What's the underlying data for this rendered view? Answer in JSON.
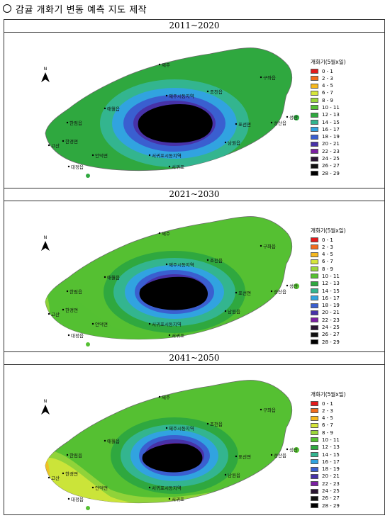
{
  "header": {
    "text": "감귤 개화기 변동 예측 지도 제작"
  },
  "legend": {
    "title": "개화기(5월x일)",
    "items": [
      {
        "label": "0 - 1",
        "color": "#e31a1c"
      },
      {
        "label": "2 - 3",
        "color": "#f26b1d"
      },
      {
        "label": "4 - 5",
        "color": "#f6b81f"
      },
      {
        "label": "6 - 7",
        "color": "#d6e63a"
      },
      {
        "label": "8 - 9",
        "color": "#9bd63b"
      },
      {
        "label": "10 - 11",
        "color": "#55c032"
      },
      {
        "label": "12 - 13",
        "color": "#2fa83f"
      },
      {
        "label": "14 - 15",
        "color": "#33b58f"
      },
      {
        "label": "16 - 17",
        "color": "#31a3e0"
      },
      {
        "label": "18 - 19",
        "color": "#3a5fd0"
      },
      {
        "label": "20 - 21",
        "color": "#4732a8"
      },
      {
        "label": "22 - 23",
        "color": "#7b1fa2"
      },
      {
        "label": "24 - 25",
        "color": "#2b1633"
      },
      {
        "label": "26 - 27",
        "color": "#111111"
      },
      {
        "label": "28 - 29",
        "color": "#000000"
      }
    ]
  },
  "north_label": "N",
  "place_labels": [
    "제주",
    "구좌읍",
    "조천읍",
    "제주시동지역",
    "애월읍",
    "성산읍",
    "한림읍",
    "표선면",
    "남원읍",
    "한경면",
    "고산",
    "안덕면",
    "서귀포시동지역",
    "대정읍",
    "서귀포",
    "성산"
  ],
  "panels": [
    {
      "title": "2011~2020",
      "scenario": "baseline"
    },
    {
      "title": "2021~2030",
      "scenario": "mid"
    },
    {
      "title": "2041~2050",
      "scenario": "late"
    }
  ]
}
